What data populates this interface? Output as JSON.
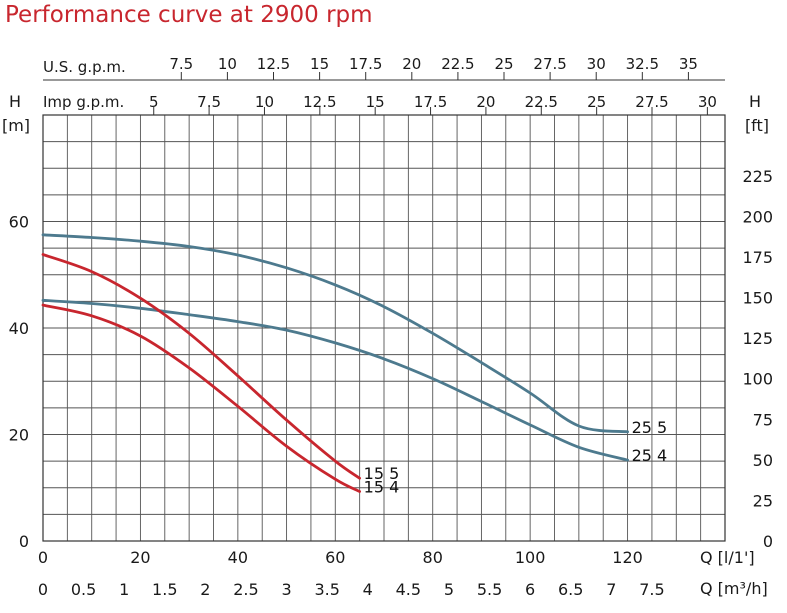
{
  "chart_data": {
    "type": "line",
    "title": "Performance curve at 2900 rpm",
    "x_unit_top_us": "U.S. g.p.m.",
    "x_unit_top_imp": "Imp g.p.m.",
    "x_unit_lpm": "Q [l/1']",
    "x_unit_m3h": "Q [m³/h]",
    "y_left_label": "H",
    "y_left_unit": "[m]",
    "y_right_label": "H",
    "y_right_unit": "[ft]",
    "x_range_lpm": [
      0,
      140
    ],
    "y_range_m": [
      0,
      80
    ],
    "grid": true,
    "ticks": {
      "usgpm": [
        "7.5",
        "10",
        "12.5",
        "15",
        "17.5",
        "20",
        "22.5",
        "25",
        "27.5",
        "30",
        "32.5",
        "35"
      ],
      "impgpm": [
        "5",
        "7.5",
        "10",
        "12.5",
        "15",
        "17.5",
        "20",
        "22.5",
        "25",
        "27.5",
        "30"
      ],
      "lpm": [
        "0",
        "20",
        "40",
        "60",
        "80",
        "100",
        "120"
      ],
      "m3h": [
        "0",
        "0.5",
        "1",
        "1.5",
        "2",
        "2.5",
        "3",
        "3.5",
        "4",
        "4.5",
        "5",
        "5.5",
        "6",
        "6.5",
        "7",
        "7.5"
      ],
      "left_m": [
        "0",
        "20",
        "40",
        "60"
      ],
      "right_ft": [
        "0",
        "25",
        "50",
        "75",
        "100",
        "125",
        "150",
        "175",
        "200",
        "225"
      ]
    },
    "series": [
      {
        "name": "25 5",
        "color": "#4d7a8e",
        "x": [
          0,
          10,
          20,
          30,
          40,
          50,
          60,
          70,
          80,
          90,
          100,
          110,
          120
        ],
        "y": [
          57.5,
          57,
          56.3,
          55.3,
          53.7,
          51.3,
          48.1,
          44,
          39,
          33.5,
          27.8,
          21.6,
          20.5
        ]
      },
      {
        "name": "25 4",
        "color": "#4d7a8e",
        "x": [
          0,
          10,
          20,
          30,
          40,
          50,
          60,
          70,
          80,
          90,
          100,
          110,
          120
        ],
        "y": [
          45.2,
          44.6,
          43.7,
          42.5,
          41.2,
          39.6,
          37.2,
          34.2,
          30.5,
          26.2,
          21.8,
          17.6,
          15.2
        ]
      },
      {
        "name": "15 5",
        "color": "#c8262e",
        "x": [
          0,
          10,
          20,
          30,
          40,
          50,
          60,
          65
        ],
        "y": [
          53.8,
          50.6,
          45.6,
          39,
          31,
          22.7,
          15,
          11.8
        ]
      },
      {
        "name": "15 4",
        "color": "#c8262e",
        "x": [
          0,
          10,
          20,
          30,
          40,
          50,
          60,
          65
        ],
        "y": [
          44.3,
          42.3,
          38.5,
          32.5,
          25.3,
          17.8,
          11.6,
          9.3
        ]
      }
    ]
  }
}
